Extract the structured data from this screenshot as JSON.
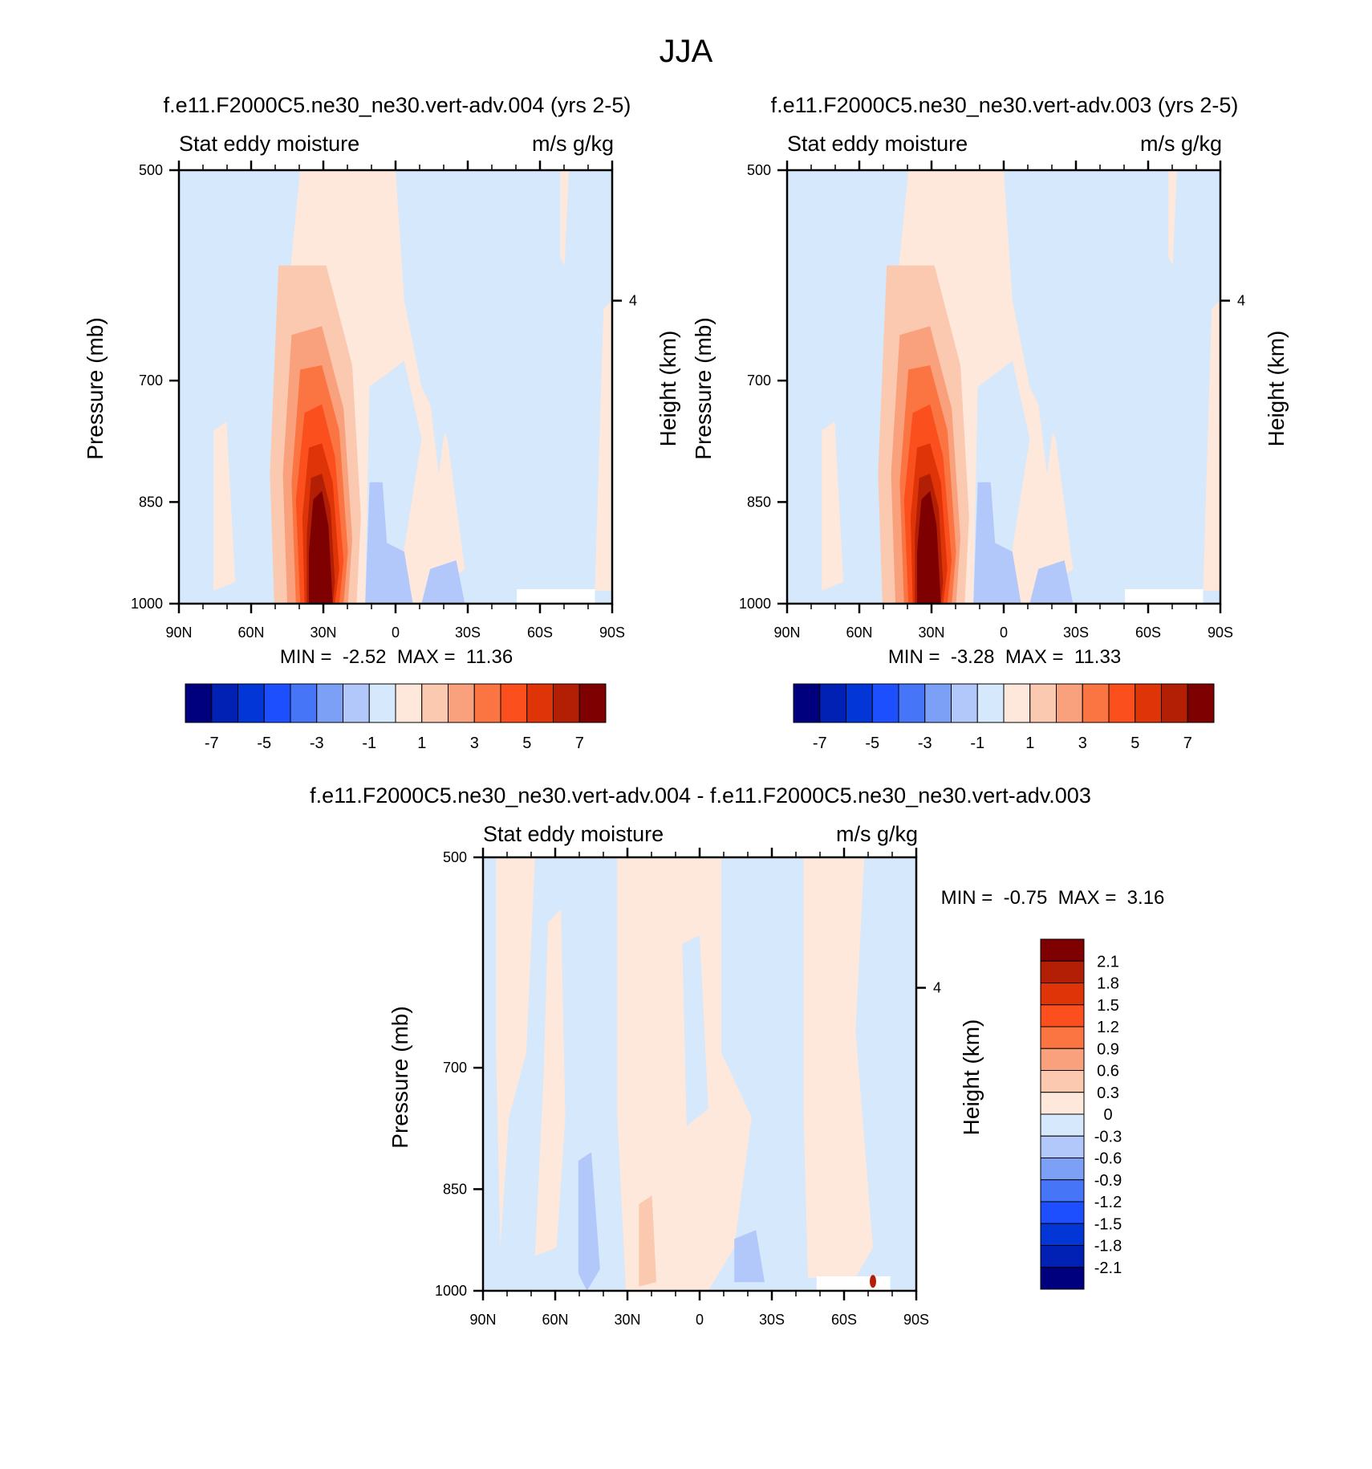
{
  "figure_title": "JJA",
  "colors": {
    "palette_16": [
      "#00007f",
      "#0021b3",
      "#0236d6",
      "#1e4fff",
      "#4775f7",
      "#7da0f7",
      "#b3c8fa",
      "#d6e8fb",
      "#fde8db",
      "#fbc8b0",
      "#f9a07d",
      "#fb7543",
      "#fb4f1e",
      "#df3408",
      "#b21f05",
      "#7e0000"
    ],
    "shading_8": [
      "#d6e8fb",
      "#b3c8fa",
      "#fde8db",
      "#fbc8b0",
      "#f9a07d",
      "#fb7543",
      "#fb4f1e",
      "#df3408",
      "#b21f05",
      "#7e0000"
    ]
  },
  "chart_data": [
    {
      "type": "heatmap",
      "title": "f.e11.F2000C5.ne30_ne30.vert-adv.004 (yrs 2-5)",
      "subtitle_left": "Stat eddy moisture",
      "subtitle_right": "m/s g/kg",
      "ylabel": "Pressure (mb)",
      "ylabel_right": "Height (km)",
      "x_ticks": [
        "90N",
        "60N",
        "30N",
        "0",
        "30S",
        "60S",
        "90S"
      ],
      "y_ticks": [
        "500",
        "700",
        "850",
        "1000"
      ],
      "y_ticks_right": [
        "4"
      ],
      "ylim": [
        1000,
        500
      ],
      "min_max": "MIN =  -2.52  MAX =  11.36",
      "colorbar_labels": [
        "-7",
        "-5",
        "-3",
        "-1",
        "1",
        "3",
        "5",
        "7"
      ],
      "features": [
        {
          "lat": 30,
          "pressure": 950,
          "value": 11.36
        },
        {
          "lat": 0,
          "pressure": 970,
          "value": -2.52
        }
      ]
    },
    {
      "type": "heatmap",
      "title": "f.e11.F2000C5.ne30_ne30.vert-adv.003 (yrs 2-5)",
      "subtitle_left": "Stat eddy moisture",
      "subtitle_right": "m/s g/kg",
      "ylabel": "Pressure (mb)",
      "ylabel_right": "Height (km)",
      "x_ticks": [
        "90N",
        "60N",
        "30N",
        "0",
        "30S",
        "60S",
        "90S"
      ],
      "y_ticks": [
        "500",
        "700",
        "850",
        "1000"
      ],
      "y_ticks_right": [
        "4"
      ],
      "ylim": [
        1000,
        500
      ],
      "min_max": "MIN =  -3.28  MAX =  11.33",
      "colorbar_labels": [
        "-7",
        "-5",
        "-3",
        "-1",
        "1",
        "3",
        "5",
        "7"
      ],
      "features": [
        {
          "lat": 30,
          "pressure": 950,
          "value": 11.33
        },
        {
          "lat": 0,
          "pressure": 970,
          "value": -3.28
        }
      ]
    },
    {
      "type": "heatmap",
      "title": "f.e11.F2000C5.ne30_ne30.vert-adv.004 - f.e11.F2000C5.ne30_ne30.vert-adv.003",
      "subtitle_left": "Stat eddy moisture",
      "subtitle_right": "m/s g/kg",
      "ylabel": "Pressure (mb)",
      "ylabel_right": "Height (km)",
      "x_ticks": [
        "90N",
        "60N",
        "30N",
        "0",
        "30S",
        "60S",
        "90S"
      ],
      "y_ticks": [
        "500",
        "700",
        "850",
        "1000"
      ],
      "y_ticks_right": [
        "4"
      ],
      "ylim": [
        1000,
        500
      ],
      "min_max": "MIN =  -0.75  MAX =  3.16",
      "colorbar_labels": [
        "2.1",
        "1.8",
        "1.5",
        "1.2",
        "0.9",
        "0.6",
        "0.3",
        "0",
        "-0.3",
        "-0.6",
        "-0.9",
        "-1.2",
        "-1.5",
        "-1.8",
        "-2.1"
      ],
      "features": [
        {
          "lat": -72,
          "pressure": 985,
          "value": 3.16
        },
        {
          "lat": 46,
          "pressure": 990,
          "value": -0.75
        }
      ]
    }
  ]
}
